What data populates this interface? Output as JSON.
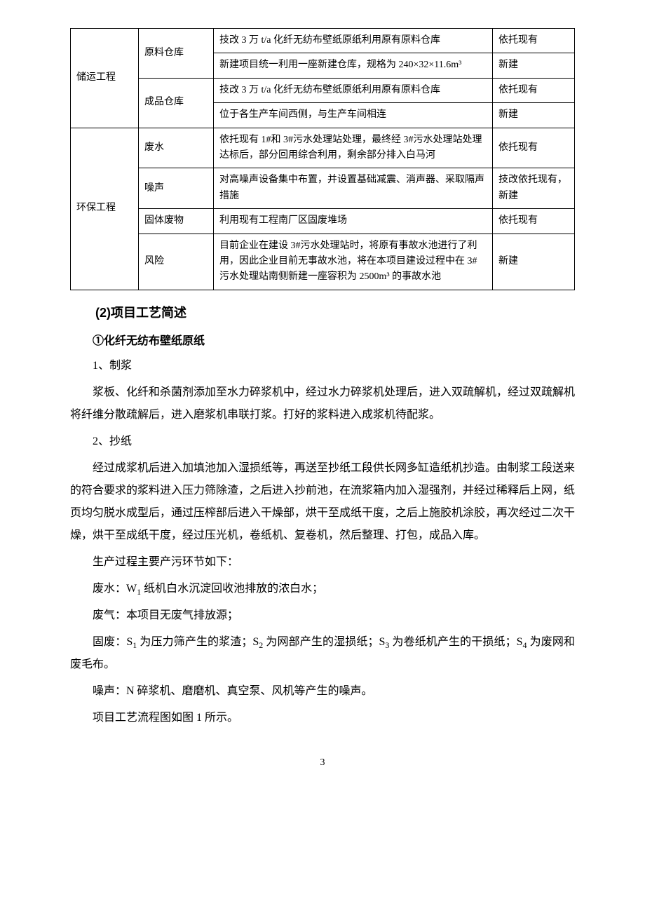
{
  "table": {
    "rows": [
      {
        "c1": "储运工程",
        "c1_rowspan": 4,
        "c2": "原料仓库",
        "c2_rowspan": 2,
        "c3": "技改 3 万 t/a 化纤无纺布壁纸原纸利用原有原料仓库",
        "c4": "依托现有"
      },
      {
        "c3": "新建项目统一利用一座新建仓库，规格为 240×32×11.6m³",
        "c4": "新建"
      },
      {
        "c2": "成品仓库",
        "c2_rowspan": 2,
        "c3": "技改 3 万 t/a 化纤无纺布壁纸原纸利用原有原料仓库",
        "c4": "依托现有"
      },
      {
        "c3": "位于各生产车间西侧，与生产车间相连",
        "c4": "新建"
      },
      {
        "c1": "环保工程",
        "c1_rowspan": 4,
        "c2": "废水",
        "c3": "依托现有 1#和 3#污水处理站处理，最终经 3#污水处理站处理达标后，部分回用综合利用，剩余部分排入白马河",
        "c4": "依托现有"
      },
      {
        "c2": "噪声",
        "c3": "对高噪声设备集中布置，并设置基础减震、消声器、采取隔声措施",
        "c4": "技改依托现有，新建"
      },
      {
        "c2": "固体废物",
        "c3": "利用现有工程南厂区固废堆场",
        "c4": "依托现有"
      },
      {
        "c2": "风险",
        "c3": "目前企业在建设 3#污水处理站时，将原有事故水池进行了利用，因此企业目前无事故水池，将在本项目建设过程中在 3#污水处理站南侧新建一座容积为 2500m³ 的事故水池",
        "c4": "新建"
      }
    ]
  },
  "heading_2": "(2)项目工艺简述",
  "heading_2_1": "①化纤无纺布壁纸原纸",
  "step1_title": "1、制浆",
  "step1_p1": "浆板、化纤和杀菌剂添加至水力碎浆机中，经过水力碎浆机处理后，进入双疏解机，经过双疏解机将纤维分散疏解后，进入磨浆机串联打浆。打好的浆料进入成浆机待配浆。",
  "step2_title": "2、抄纸",
  "step2_p1": "经过成浆机后进入加填池加入湿损纸等，再送至抄纸工段供长网多缸造纸机抄造。由制浆工段送来的符合要求的浆料进入压力筛除渣，之后进入抄前池，在流浆箱内加入湿强剂，并经过稀释后上网，纸页均匀脱水成型后，通过压榨部后进入干燥部，烘干至成纸干度，之后上施胶机涂胶，再次经过二次干燥，烘干至成纸干度，经过压光机，卷纸机、复卷机，然后整理、打包，成品入库。",
  "pollution_intro": "生产过程主要产污环节如下：",
  "pollution_water_pre": "废水：W",
  "pollution_water_sub": "1",
  "pollution_water_post": " 纸机白水沉淀回收池排放的浓白水；",
  "pollution_air": "废气：本项目无废气排放源；",
  "pollution_solid_pre": "固废：S",
  "ps1": "1",
  "ps1t": " 为压力筛产生的浆渣；S",
  "ps2": "2",
  "ps2t": " 为网部产生的湿损纸；S",
  "ps3": "3",
  "ps3t": " 为卷纸机产生的干损纸；S",
  "ps4": "4",
  "ps4t": " 为废网和废毛布。",
  "pollution_noise": "噪声：N 碎浆机、磨磨机、真空泵、风机等产生的噪声。",
  "flow_ref": "项目工艺流程图如图 1 所示。",
  "page_number": "3"
}
